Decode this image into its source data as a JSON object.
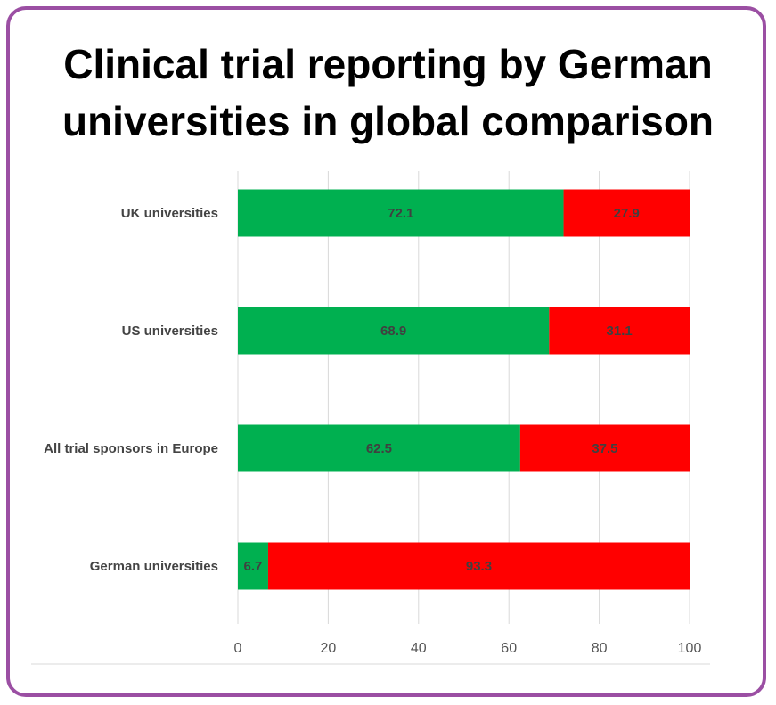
{
  "chart_data": {
    "type": "bar",
    "orientation": "horizontal",
    "stacked": true,
    "title": "Clinical trial reporting by German universities in global comparison",
    "categories": [
      "UK universities",
      "US universities",
      "All trial sponsors in Europe",
      "German universities"
    ],
    "series": [
      {
        "values": [
          72.1,
          68.9,
          62.5,
          6.7
        ],
        "color": "#00b050"
      },
      {
        "values": [
          27.9,
          31.1,
          37.5,
          93.3
        ],
        "color": "#ff0000"
      }
    ],
    "xlim": [
      0,
      100
    ],
    "xticks": [
      0,
      20,
      40,
      60,
      80,
      100
    ],
    "grid": "vertical",
    "legend": "none"
  }
}
